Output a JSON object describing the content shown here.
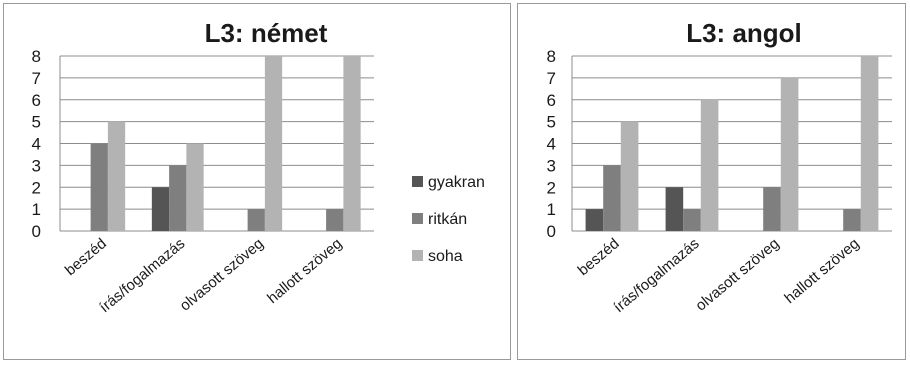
{
  "colors": {
    "gyakran": "#555555",
    "ritkan": "#7f7f7f",
    "soha": "#b3b3b3",
    "grid": "#8c8c8c"
  },
  "legend": [
    "gyakran",
    "ritkán",
    "soha"
  ],
  "chart_data": [
    {
      "type": "bar",
      "title": "L3: német",
      "categories": [
        "beszéd",
        "írás/fogalmazás",
        "olvasott szöveg",
        "hallott szöveg"
      ],
      "ylim": [
        0,
        8
      ],
      "yticks": [
        0,
        1,
        2,
        3,
        4,
        5,
        6,
        7,
        8
      ],
      "grid": true,
      "legend_position": "right",
      "series": [
        {
          "name": "gyakran",
          "values": [
            0,
            2,
            0,
            0
          ]
        },
        {
          "name": "ritkán",
          "values": [
            4,
            3,
            1,
            1
          ]
        },
        {
          "name": "soha",
          "values": [
            5,
            4,
            8,
            8
          ]
        }
      ]
    },
    {
      "type": "bar",
      "title": "L3: angol",
      "categories": [
        "beszéd",
        "írás/fogalmazás",
        "olvasott szöveg",
        "hallott szöveg"
      ],
      "ylim": [
        0,
        8
      ],
      "yticks": [
        0,
        1,
        2,
        3,
        4,
        5,
        6,
        7,
        8
      ],
      "grid": true,
      "legend_position": "none",
      "series": [
        {
          "name": "gyakran",
          "values": [
            1,
            2,
            0,
            0
          ]
        },
        {
          "name": "ritkán",
          "values": [
            3,
            1,
            2,
            1
          ]
        },
        {
          "name": "soha",
          "values": [
            5,
            6,
            7,
            8
          ]
        }
      ]
    }
  ]
}
